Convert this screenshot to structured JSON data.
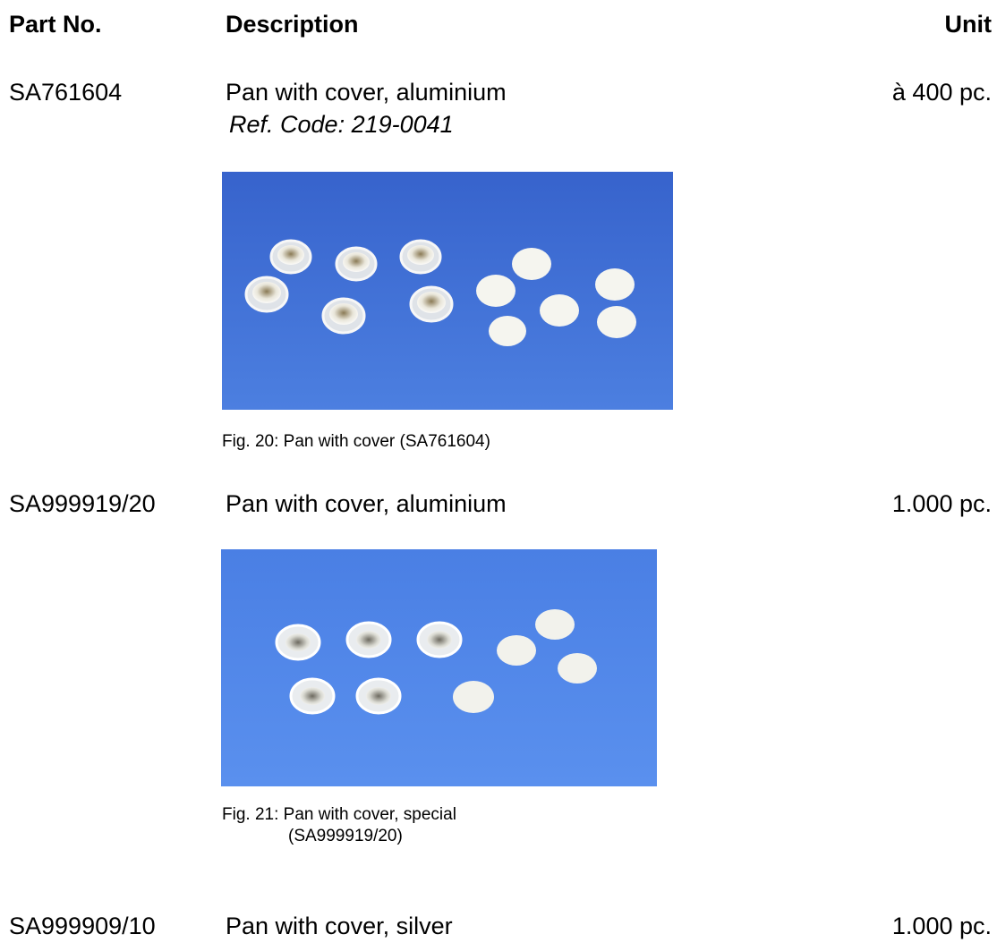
{
  "header": {
    "part_no": "Part No.",
    "description": "Description",
    "unit": "Unit"
  },
  "items": [
    {
      "part_no": "SA761604",
      "description": "Pan with cover, aluminium",
      "ref_code": "Ref. Code: 219-0041",
      "unit": "à 400 pc.",
      "caption": "Fig. 20: Pan with cover (SA761604)"
    },
    {
      "part_no": "SA999919/20",
      "description": "Pan with cover, aluminium",
      "unit": "1.000 pc.",
      "caption_line1": "Fig. 21: Pan with cover, special",
      "caption_line2": "(SA999919/20)"
    },
    {
      "part_no": "SA999909/10",
      "description": "Pan with cover, silver",
      "unit": "1.000 pc."
    }
  ],
  "colors": {
    "photo1_background": "#3f6fd6",
    "photo2_background": "#4f86e8",
    "pan_metal": "#c9cdd3",
    "cover_white": "#f4f4ee"
  }
}
